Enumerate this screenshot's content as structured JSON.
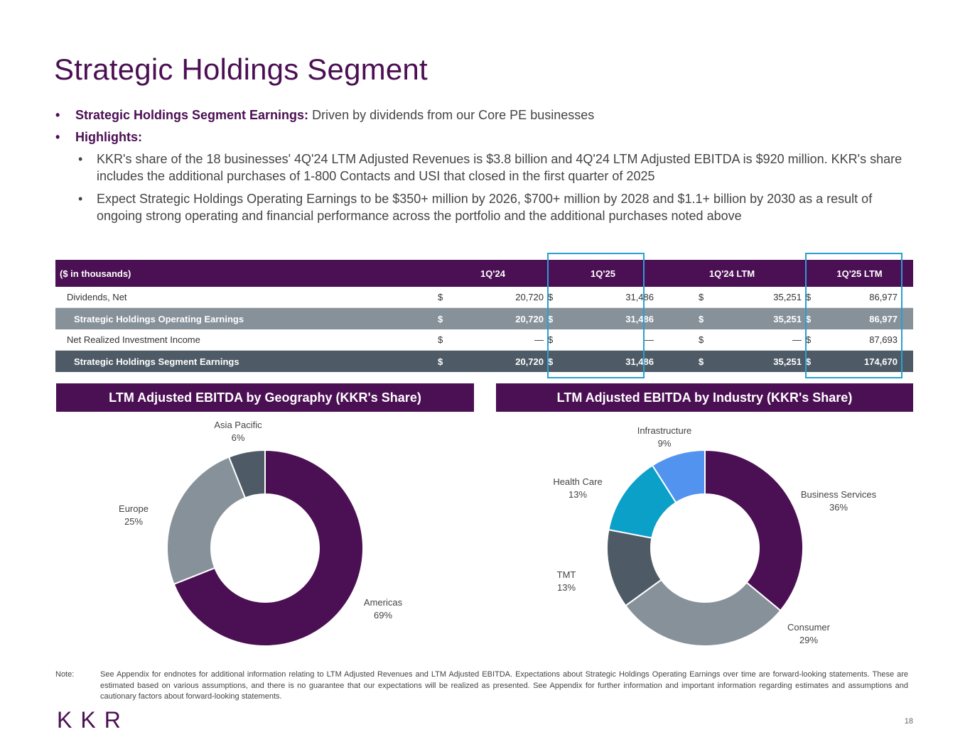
{
  "title": "Strategic Holdings Segment",
  "bullets": {
    "b1_label": "Strategic Holdings Segment Earnings:",
    "b1_text": " Driven by dividends from our Core PE businesses",
    "b2_label": "Highlights:",
    "sub": [
      "KKR's share of the 18 businesses' 4Q'24 LTM Adjusted Revenues is $3.8 billion and 4Q'24 LTM Adjusted EBITDA is $920 million. KKR's share includes the additional purchases of 1-800 Contacts and USI that closed in the first quarter of 2025",
      "Expect Strategic Holdings Operating Earnings to be $350+ million by 2026, $700+ million by 2028 and $1.1+ billion by 2030 as a result of ongoing strong operating and financial performance across the portfolio and the additional purchases noted above"
    ]
  },
  "table": {
    "header": [
      "($ in thousands)",
      "1Q'24",
      "1Q'25",
      "1Q'24 LTM",
      "1Q'25 LTM"
    ],
    "rows": [
      {
        "label": "Dividends, Net",
        "cur": [
          "$",
          "$",
          "$",
          "$"
        ],
        "vals": [
          "20,720",
          "31,486",
          "35,251",
          "86,977"
        ]
      },
      {
        "label": "Strategic Holdings Operating Earnings",
        "cur": [
          "$",
          "$",
          "$",
          "$"
        ],
        "vals": [
          "20,720",
          "31,486",
          "35,251",
          "86,977"
        ]
      },
      {
        "label": "Net Realized Investment Income",
        "cur": [
          "$",
          "$",
          "$",
          "$"
        ],
        "vals": [
          "—",
          "—",
          "—",
          "87,693"
        ]
      },
      {
        "label": "Strategic Holdings Segment Earnings",
        "cur": [
          "$",
          "$",
          "$",
          "$"
        ],
        "vals": [
          "20,720",
          "31,486",
          "35,251",
          "174,670"
        ]
      }
    ]
  },
  "chart_data": [
    {
      "type": "pie",
      "title": "LTM Adjusted EBITDA by Geography (KKR's Share)",
      "categories": [
        "Americas",
        "Europe",
        "Asia Pacific"
      ],
      "values": [
        69,
        25,
        6
      ],
      "labels": [
        "69%",
        "25%",
        "6%"
      ],
      "colors": [
        "#4b0f53",
        "#87919a",
        "#4e5b66"
      ]
    },
    {
      "type": "pie",
      "title": "LTM Adjusted EBITDA by Industry (KKR's Share)",
      "categories": [
        "Business Services",
        "Consumer",
        "TMT",
        "Health Care",
        "Infrastructure"
      ],
      "values": [
        36,
        29,
        13,
        13,
        9
      ],
      "labels": [
        "36%",
        "29%",
        "13%",
        "13%",
        "9%"
      ],
      "colors": [
        "#4b0f53",
        "#87919a",
        "#4e5b66",
        "#0aa0c8",
        "#5293f0"
      ]
    }
  ],
  "note": {
    "label": "Note:",
    "text": "See Appendix for endnotes for additional information relating to LTM Adjusted Revenues and LTM Adjusted EBITDA. Expectations about Strategic Holdings Operating Earnings over time are forward-looking statements. These are estimated based on various assumptions, and there is no guarantee that our expectations will be realized as presented. See Appendix for further information and important information regarding estimates and assumptions and cautionary factors about forward-looking statements."
  },
  "logo": "KKR",
  "page_number": "18"
}
